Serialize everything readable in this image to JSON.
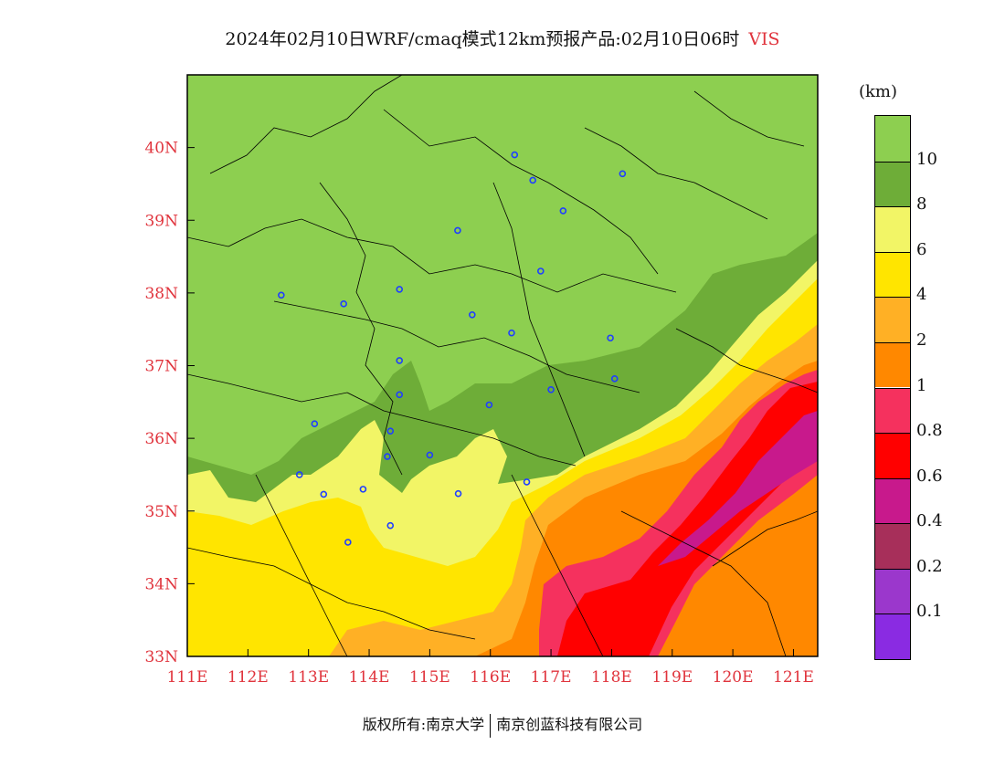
{
  "title": {
    "main": "2024年02月10日WRF/cmaq模式12km预报产品:02月10日06时",
    "variable": "VIS"
  },
  "unit": "(km)",
  "legend": {
    "colors": [
      "#8dcf50",
      "#6ead38",
      "#f2f566",
      "#ffe500",
      "#ffb025",
      "#ff8800",
      "#f5315e",
      "#ff0000",
      "#c8198c",
      "#a72f5a",
      "#9b37cc",
      "#8a2be2"
    ],
    "labels": [
      "10",
      "8",
      "6",
      "4",
      "2",
      "1",
      "0.8",
      "0.6",
      "0.4",
      "0.2",
      "0.1"
    ]
  },
  "axes": {
    "lat_labels": [
      "40N",
      "39N",
      "38N",
      "37N",
      "36N",
      "35N",
      "34N",
      "33N"
    ],
    "lon_labels": [
      "111E",
      "112E",
      "113E",
      "114E",
      "115E",
      "116E",
      "117E",
      "118E",
      "119E",
      "120E",
      "121E"
    ],
    "lat_range": [
      33,
      41
    ],
    "lon_range": [
      111,
      121.4
    ]
  },
  "colors": {
    "axis_label": "#e0333c",
    "title_variable": "#e0333c"
  },
  "footer": {
    "left": "版权所有:南京大学",
    "right": "南京创蓝科技有限公司"
  },
  "stations": [
    {
      "lon": 116.4,
      "lat": 39.9
    },
    {
      "lon": 116.7,
      "lat": 39.55
    },
    {
      "lon": 117.2,
      "lat": 39.13
    },
    {
      "lon": 118.18,
      "lat": 39.64
    },
    {
      "lon": 115.46,
      "lat": 38.86
    },
    {
      "lon": 116.83,
      "lat": 38.3
    },
    {
      "lon": 114.5,
      "lat": 38.05
    },
    {
      "lon": 113.58,
      "lat": 37.85
    },
    {
      "lon": 112.55,
      "lat": 37.97
    },
    {
      "lon": 115.7,
      "lat": 37.7
    },
    {
      "lon": 116.35,
      "lat": 37.45
    },
    {
      "lon": 117.98,
      "lat": 37.38
    },
    {
      "lon": 118.05,
      "lat": 36.82
    },
    {
      "lon": 117.0,
      "lat": 36.67
    },
    {
      "lon": 114.5,
      "lat": 37.07
    },
    {
      "lon": 114.5,
      "lat": 36.6
    },
    {
      "lon": 115.98,
      "lat": 36.46
    },
    {
      "lon": 113.1,
      "lat": 36.2
    },
    {
      "lon": 114.35,
      "lat": 36.1
    },
    {
      "lon": 114.3,
      "lat": 35.75
    },
    {
      "lon": 115.0,
      "lat": 35.77
    },
    {
      "lon": 112.85,
      "lat": 35.5
    },
    {
      "lon": 116.6,
      "lat": 35.4
    },
    {
      "lon": 113.9,
      "lat": 35.3
    },
    {
      "lon": 113.25,
      "lat": 35.23
    },
    {
      "lon": 115.47,
      "lat": 35.24
    },
    {
      "lon": 114.35,
      "lat": 34.8
    },
    {
      "lon": 113.65,
      "lat": 34.57
    }
  ]
}
